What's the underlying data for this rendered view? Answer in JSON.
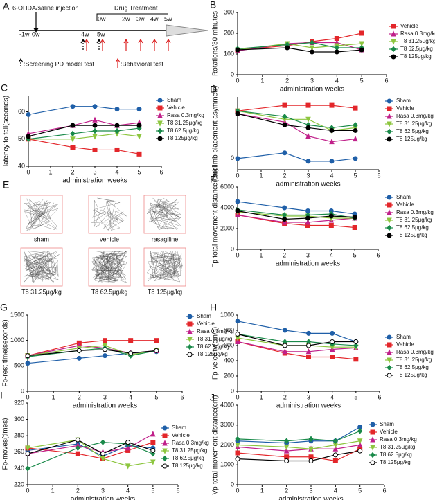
{
  "timeline": {
    "label": "A",
    "injection": "6-OHDA/saline injection",
    "treatment": "Drug Treatment",
    "weeks_top": [
      "0w",
      "2w",
      "3w",
      "4w",
      "5w"
    ],
    "weeks_bottom": [
      "-1w",
      "0w",
      "4w",
      "5w"
    ],
    "screening": ":Screening PD model test",
    "behavioral": ":Behavioral test"
  },
  "open_field": {
    "label": "E",
    "images": [
      "sham",
      "vehicle",
      "rasagiline",
      "T8 31.25μg/kg",
      "T8 62.5μg/kg",
      "T8 125μg/kg"
    ]
  },
  "chart_data": [
    {
      "type": "line",
      "label": "B",
      "ylabel": "Rotations/30 minutes",
      "xlabel": "administration weeks",
      "x": [
        0,
        2,
        3,
        4,
        5
      ],
      "xlim": [
        0,
        6
      ],
      "xticks": [
        0,
        1,
        2,
        3,
        4,
        5,
        6
      ],
      "ylim": [
        0,
        300
      ],
      "yticks": [
        0,
        100,
        200,
        300
      ],
      "series": [
        {
          "name": "Vehicle",
          "color": "#e3262a",
          "marker": "square",
          "values": [
            120,
            140,
            160,
            175,
            200
          ]
        },
        {
          "name": "Rasa 0.3mg/kg",
          "color": "#c0208a",
          "marker": "triangle",
          "values": [
            115,
            150,
            155,
            155,
            120
          ]
        },
        {
          "name": "T8 31.25μg/kg",
          "color": "#8dc63f",
          "marker": "triangle-down",
          "values": [
            120,
            150,
            130,
            140,
            150
          ]
        },
        {
          "name": "T8 62.5μg/kg",
          "color": "#1a8a4a",
          "marker": "diamond",
          "values": [
            125,
            145,
            155,
            130,
            130
          ]
        },
        {
          "name": "T8 125μg/kg",
          "color": "#000000",
          "marker": "circle",
          "values": [
            120,
            130,
            110,
            110,
            120
          ]
        }
      ]
    },
    {
      "type": "line",
      "label": "C",
      "ylabel": "latency to fall(seconds)",
      "xlabel": "administration weeks",
      "x": [
        0,
        2,
        3,
        4,
        5
      ],
      "xlim": [
        0,
        6
      ],
      "xticks": [
        0,
        1,
        2,
        3,
        4,
        5,
        6
      ],
      "ylim": [
        40,
        66
      ],
      "yticks": [
        40,
        50,
        60
      ],
      "series": [
        {
          "name": "Sham",
          "color": "#1f5fa8",
          "marker": "circle",
          "values": [
            59,
            62,
            62,
            61,
            61
          ]
        },
        {
          "name": "Vehicle",
          "color": "#e3262a",
          "marker": "square",
          "values": [
            50,
            47,
            46,
            46,
            44.5
          ]
        },
        {
          "name": "Rasa 0.3mg/kg",
          "color": "#c0208a",
          "marker": "triangle",
          "values": [
            52,
            55,
            57,
            55,
            56
          ]
        },
        {
          "name": "T8 31.25μg/kg",
          "color": "#8dc63f",
          "marker": "triangle-down",
          "values": [
            50,
            50,
            51,
            52,
            51
          ]
        },
        {
          "name": "T8 62.5μg/kg",
          "color": "#1a8a4a",
          "marker": "diamond",
          "values": [
            50,
            52,
            53,
            53,
            54
          ]
        },
        {
          "name": "T8 125μg/kg",
          "color": "#000000",
          "marker": "circle",
          "values": [
            51,
            55,
            55,
            55,
            55
          ]
        }
      ]
    },
    {
      "type": "line",
      "label": "D",
      "ylabel": "Forelimb placement asymmetry",
      "xlabel": "administration weeks",
      "x": [
        0,
        2,
        3,
        4,
        5
      ],
      "xlim": [
        0,
        6
      ],
      "xticks": [
        0,
        1,
        2,
        3,
        4,
        5,
        6
      ],
      "ylim": [
        -0.2,
        1.1
      ],
      "yticks": [
        0
      ],
      "series": [
        {
          "name": "Sham",
          "color": "#1f5fa8",
          "marker": "circle",
          "values": [
            0,
            0.1,
            -0.05,
            -0.05,
            0
          ]
        },
        {
          "name": "Vehicle",
          "color": "#e3262a",
          "marker": "square",
          "values": [
            0.85,
            0.95,
            0.95,
            0.95,
            0.9
          ]
        },
        {
          "name": "Rasa 0.3mg/kg",
          "color": "#c0208a",
          "marker": "triangle",
          "values": [
            0.8,
            0.65,
            0.4,
            0.3,
            0.35
          ]
        },
        {
          "name": "T8 31.25μg/kg",
          "color": "#8dc63f",
          "marker": "triangle-down",
          "values": [
            0.85,
            0.7,
            0.7,
            0.5,
            0.55
          ]
        },
        {
          "name": "T8 62.5μg/kg",
          "color": "#1a8a4a",
          "marker": "diamond",
          "values": [
            0.85,
            0.75,
            0.6,
            0.55,
            0.6
          ]
        },
        {
          "name": "T8 125μg/kg",
          "color": "#000000",
          "marker": "circle",
          "values": [
            0.8,
            0.6,
            0.55,
            0.5,
            0.5
          ]
        }
      ]
    },
    {
      "type": "line",
      "label": "F",
      "ylabel": "Fp-total movement distance(cm)",
      "xlabel": "administration weeks",
      "x": [
        0,
        2,
        3,
        4,
        5
      ],
      "xlim": [
        0,
        6
      ],
      "xticks": [
        0,
        1,
        2,
        3,
        4,
        5,
        6
      ],
      "ylim": [
        0,
        6000
      ],
      "yticks": [
        0,
        2000,
        4000,
        6000
      ],
      "series": [
        {
          "name": "Sham",
          "color": "#1f5fa8",
          "marker": "circle",
          "values": [
            4600,
            4000,
            3700,
            3700,
            3400
          ]
        },
        {
          "name": "Vehicle",
          "color": "#e3262a",
          "marker": "square",
          "values": [
            3300,
            2500,
            2300,
            2300,
            2100
          ]
        },
        {
          "name": "Rasa 0.3mg/kg",
          "color": "#c0208a",
          "marker": "triangle",
          "values": [
            3300,
            2600,
            2600,
            2800,
            3000
          ]
        },
        {
          "name": "T8 31.25μg/kg",
          "color": "#8dc63f",
          "marker": "triangle-down",
          "values": [
            3600,
            3200,
            3200,
            3000,
            3000
          ]
        },
        {
          "name": "T8 62.5μg/kg",
          "color": "#1a8a4a",
          "marker": "diamond",
          "values": [
            3800,
            3300,
            3300,
            3400,
            3000
          ]
        },
        {
          "name": "T8 125μg/kg",
          "color": "#000000",
          "marker": "circle",
          "values": [
            3700,
            2900,
            3000,
            3200,
            3100
          ]
        }
      ]
    },
    {
      "type": "line",
      "label": "G",
      "ylabel": "Fp-rest time(seconds)",
      "xlabel": "administration weeks",
      "x": [
        0,
        2,
        3,
        4,
        5
      ],
      "xlim": [
        0,
        6
      ],
      "xticks": [
        0,
        1,
        2,
        3,
        4,
        5,
        6
      ],
      "ylim": [
        0,
        1500
      ],
      "yticks": [
        0,
        500,
        1000,
        1500
      ],
      "series": [
        {
          "name": "Sham",
          "color": "#1f5fa8",
          "marker": "circle",
          "values": [
            550,
            650,
            700,
            750,
            780
          ]
        },
        {
          "name": "Vehicle",
          "color": "#e3262a",
          "marker": "square",
          "values": [
            700,
            950,
            1000,
            1000,
            1000
          ]
        },
        {
          "name": "Rasa 0.3mg/kg",
          "color": "#c0208a",
          "marker": "triangle",
          "values": [
            700,
            900,
            850,
            750,
            800
          ]
        },
        {
          "name": "T8 31.25μg/kg",
          "color": "#8dc63f",
          "marker": "triangle-down",
          "values": [
            700,
            850,
            900,
            720,
            800
          ]
        },
        {
          "name": "T8 62.5μg/kg",
          "color": "#1a8a4a",
          "marker": "diamond",
          "values": [
            680,
            800,
            850,
            700,
            800
          ]
        },
        {
          "name": "T8 125μg/kg",
          "color": "#000000",
          "marker": "open-circle",
          "values": [
            700,
            800,
            820,
            750,
            800
          ]
        }
      ]
    },
    {
      "type": "line",
      "label": "H",
      "ylabel": "Fp-velocity(cm/s)",
      "xlabel": "administration weeks",
      "x": [
        0,
        2,
        3,
        4,
        5
      ],
      "xlim": [
        0,
        6
      ],
      "xticks": [
        0,
        1,
        2,
        3,
        4,
        5,
        6
      ],
      "ylim": [
        0,
        1000
      ],
      "yticks": [
        0,
        200,
        400,
        600,
        800,
        1000
      ],
      "series": [
        {
          "name": "Sham",
          "color": "#1f5fa8",
          "marker": "circle",
          "values": [
            920,
            800,
            760,
            760,
            650
          ]
        },
        {
          "name": "Vehicle",
          "color": "#e3262a",
          "marker": "square",
          "values": [
            650,
            500,
            450,
            450,
            420
          ]
        },
        {
          "name": "Rasa 0.3mg/kg",
          "color": "#c0208a",
          "marker": "triangle",
          "values": [
            650,
            520,
            520,
            550,
            570
          ]
        },
        {
          "name": "T8 31.25μg/kg",
          "color": "#8dc63f",
          "marker": "triangle-down",
          "values": [
            700,
            600,
            600,
            580,
            580
          ]
        },
        {
          "name": "T8 62.5μg/kg",
          "color": "#1a8a4a",
          "marker": "diamond",
          "values": [
            750,
            650,
            650,
            620,
            600
          ]
        },
        {
          "name": "T8 125μg/kg",
          "color": "#000000",
          "marker": "open-circle",
          "values": [
            750,
            600,
            600,
            650,
            650
          ]
        }
      ]
    },
    {
      "type": "line",
      "label": "I",
      "ylabel": "Fp-moves(times)",
      "xlabel": "administration weeks",
      "x": [
        0,
        2,
        3,
        4,
        5
      ],
      "xlim": [
        0,
        6
      ],
      "xticks": [
        0,
        1,
        2,
        3,
        4,
        5,
        6
      ],
      "ylim": [
        220,
        320
      ],
      "yticks": [
        220,
        240,
        260,
        280,
        300,
        320
      ],
      "series": [
        {
          "name": "Sham",
          "color": "#1f5fa8",
          "marker": "circle",
          "values": [
            262,
            270,
            255,
            268,
            265
          ]
        },
        {
          "name": "Vehicle",
          "color": "#e3262a",
          "marker": "square",
          "values": [
            265,
            258,
            252,
            262,
            272
          ]
        },
        {
          "name": "Rasa 0.3mg/kg",
          "color": "#c0208a",
          "marker": "triangle",
          "values": [
            258,
            268,
            260,
            265,
            282
          ]
        },
        {
          "name": "T8 31.25μg/kg",
          "color": "#8dc63f",
          "marker": "triangle-down",
          "values": [
            265,
            275,
            252,
            243,
            248
          ]
        },
        {
          "name": "T8 62.5μg/kg",
          "color": "#1a8a4a",
          "marker": "diamond",
          "values": [
            240,
            265,
            272,
            270,
            258
          ]
        },
        {
          "name": "T8 125μg/kg",
          "color": "#000000",
          "marker": "open-circle",
          "values": [
            258,
            275,
            258,
            272,
            262
          ]
        }
      ]
    },
    {
      "type": "line",
      "label": "J",
      "ylabel": "Vp-total movement distance(cm)",
      "xlabel": "administration weeks",
      "x": [
        0,
        2,
        3,
        4,
        5
      ],
      "xlim": [
        0,
        6
      ],
      "xticks": [
        0,
        1,
        2,
        3,
        4,
        5,
        6
      ],
      "ylim": [
        0,
        4000
      ],
      "yticks": [
        0,
        1000,
        2000,
        3000,
        4000
      ],
      "series": [
        {
          "name": "Sham",
          "color": "#1f5fa8",
          "marker": "circle",
          "values": [
            2200,
            2100,
            2200,
            2200,
            2900
          ]
        },
        {
          "name": "Vehicle",
          "color": "#e3262a",
          "marker": "square",
          "values": [
            1600,
            1400,
            1400,
            1200,
            1800
          ]
        },
        {
          "name": "Rasa 0.3mg/kg",
          "color": "#c0208a",
          "marker": "triangle",
          "values": [
            1900,
            1700,
            1800,
            1800,
            2000
          ]
        },
        {
          "name": "T8 31.25μg/kg",
          "color": "#8dc63f",
          "marker": "triangle-down",
          "values": [
            2000,
            1900,
            1800,
            2000,
            2200
          ]
        },
        {
          "name": "T8 62.5μg/kg",
          "color": "#1a8a4a",
          "marker": "diamond",
          "values": [
            2300,
            2200,
            2300,
            2200,
            2700
          ]
        },
        {
          "name": "T8 125μg/kg",
          "color": "#000000",
          "marker": "open-circle",
          "values": [
            1300,
            1200,
            1200,
            1500,
            1700
          ]
        }
      ]
    }
  ]
}
